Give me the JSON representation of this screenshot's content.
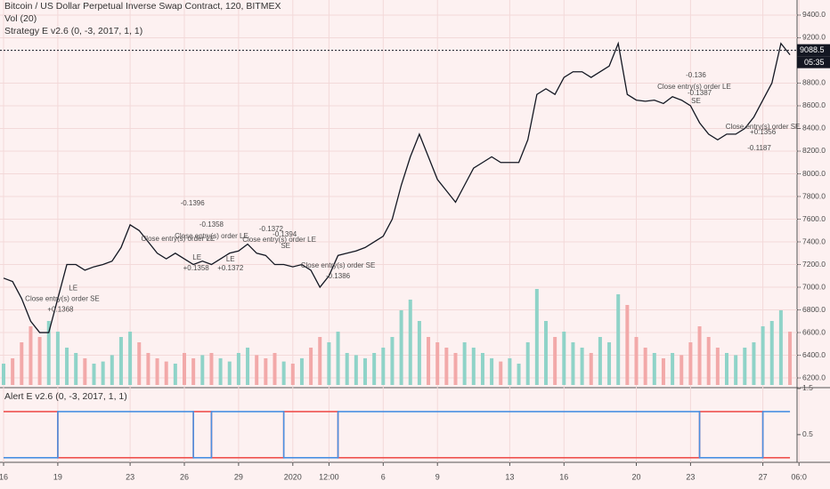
{
  "chart_data": [
    {
      "type": "line",
      "title": "Bitcoin / US Dollar Perpetual Inverse Swap Contract, 120, BITMEX",
      "subtitle": "Strategy E v2.6 (0, -3, 2017, 1, 1)",
      "series": [
        {
          "name": "BTCUSD",
          "color": "#131722",
          "values": [
            7080,
            7050,
            6900,
            6700,
            6600,
            6600,
            6900,
            7200,
            7200,
            7150,
            7180,
            7200,
            7230,
            7350,
            7550,
            7500,
            7400,
            7300,
            7250,
            7300,
            7250,
            7200,
            7230,
            7200,
            7250,
            7300,
            7320,
            7380,
            7300,
            7280,
            7200,
            7200,
            7180,
            7200,
            7150,
            7000,
            7100,
            7280,
            7300,
            7320,
            7350,
            7400,
            7450,
            7600,
            7900,
            8150,
            8350,
            8150,
            7950,
            7850,
            7750,
            7900,
            8050,
            8100,
            8150,
            8100,
            8100,
            8100,
            8300,
            8700,
            8750,
            8700,
            8850,
            8900,
            8900,
            8850,
            8900,
            8950,
            9150,
            8700,
            8650,
            8640,
            8650,
            8620,
            8680,
            8650,
            8600,
            8450,
            8350,
            8300,
            8350,
            8350,
            8400,
            8500,
            8650,
            8800,
            9150,
            9050
          ]
        }
      ],
      "volume": {
        "name": "Vol (20)",
        "up_color": "#8fd3c8",
        "down_color": "#f2a9a9",
        "values": [
          20,
          25,
          40,
          55,
          45,
          60,
          50,
          35,
          30,
          25,
          20,
          22,
          28,
          45,
          50,
          40,
          30,
          25,
          22,
          20,
          30,
          25,
          28,
          30,
          25,
          22,
          30,
          35,
          28,
          25,
          30,
          22,
          20,
          25,
          35,
          45,
          40,
          50,
          30,
          28,
          25,
          30,
          35,
          45,
          70,
          80,
          60,
          45,
          40,
          35,
          30,
          40,
          35,
          30,
          25,
          22,
          25,
          20,
          40,
          90,
          60,
          45,
          50,
          40,
          35,
          30,
          45,
          40,
          85,
          75,
          45,
          35,
          30,
          25,
          30,
          28,
          40,
          55,
          45,
          35,
          30,
          28,
          35,
          40,
          55,
          60,
          70,
          50
        ]
      },
      "vlim": [
        0,
        100
      ],
      "ylim": [
        6122,
        9533
      ],
      "yticks": [
        {
          "value": 6200,
          "label": "6200.0"
        },
        {
          "value": 6400,
          "label": "6400.0"
        },
        {
          "value": 6600,
          "label": "6600.0"
        },
        {
          "value": 6800,
          "label": "6800.0"
        },
        {
          "value": 7000,
          "label": "7000.0"
        },
        {
          "value": 7200,
          "label": "7200.0"
        },
        {
          "value": 7400,
          "label": "7400.0"
        },
        {
          "value": 7600,
          "label": "7600.0"
        },
        {
          "value": 7800,
          "label": "7800.0"
        },
        {
          "value": 8000,
          "label": "8000.0"
        },
        {
          "value": 8200,
          "label": "8200.0"
        },
        {
          "value": 8400,
          "label": "8400.0"
        },
        {
          "value": 8600,
          "label": "8600.0"
        },
        {
          "value": 8800,
          "label": "8800.0"
        },
        {
          "value": 9200,
          "label": "9200.0"
        },
        {
          "value": 9400,
          "label": "9400.0"
        }
      ],
      "xticks": [
        {
          "value": 0,
          "label": "16"
        },
        {
          "value": 6,
          "label": "19"
        },
        {
          "value": 14,
          "label": "23"
        },
        {
          "value": 20,
          "label": "26"
        },
        {
          "value": 26,
          "label": "29"
        },
        {
          "value": 32,
          "label": "2020"
        },
        {
          "value": 36,
          "label": "12:00"
        },
        {
          "value": 42,
          "label": "6"
        },
        {
          "value": 48,
          "label": "9"
        },
        {
          "value": 56,
          "label": "13"
        },
        {
          "value": 62,
          "label": "16"
        },
        {
          "value": 70,
          "label": "20"
        },
        {
          "value": 76,
          "label": "23"
        },
        {
          "value": 84,
          "label": "27"
        },
        {
          "value": 88,
          "label": "06:0"
        }
      ],
      "last_price": 9088.5,
      "countdown": "05:35",
      "grid": true,
      "annotations": [
        {
          "text": "-0.1396",
          "x": 20.9,
          "y": 7737,
          "color": "#ab47bc"
        },
        {
          "text": "Close entry(s) order LE",
          "x": 19.3,
          "y": 7424,
          "color": "#ab47bc"
        },
        {
          "text": "-0.1358",
          "x": 23,
          "y": 7549,
          "color": "#ab47bc"
        },
        {
          "text": "Close entry(s) order LE",
          "x": 23,
          "y": 7447,
          "color": "#ab47bc"
        },
        {
          "text": "-0.1372",
          "x": 29.6,
          "y": 7510,
          "color": "#ab47bc"
        },
        {
          "text": "-0.1394",
          "x": 31.1,
          "y": 7463,
          "color": "#ab47bc"
        },
        {
          "text": "Close entry(s) order LE",
          "x": 30.5,
          "y": 7416,
          "color": "#ab47bc"
        },
        {
          "text": "SE",
          "x": 31.2,
          "y": 7361,
          "color": "#f44336"
        },
        {
          "text": "Close entry(s) order SE",
          "x": 6.5,
          "y": 6894,
          "color": "#ab47bc"
        },
        {
          "text": "+0.1368",
          "x": 6.3,
          "y": 6800,
          "color": "#ab47bc"
        },
        {
          "text": "LE",
          "x": 7.7,
          "y": 6989,
          "color": "#2196f3"
        },
        {
          "text": "LE",
          "x": 21.4,
          "y": 7259,
          "color": "#2196f3"
        },
        {
          "text": "+0.1358",
          "x": 21.3,
          "y": 7165,
          "color": "#2196f3"
        },
        {
          "text": "LE",
          "x": 25.1,
          "y": 7243,
          "color": "#2196f3"
        },
        {
          "text": "+0.1372",
          "x": 25.1,
          "y": 7165,
          "color": "#2196f3"
        },
        {
          "text": "Close entry(s) order SE",
          "x": 37,
          "y": 7188,
          "color": "#ab47bc"
        },
        {
          "text": "-0.1386",
          "x": 37,
          "y": 7094,
          "color": "#ab47bc"
        },
        {
          "text": "-0.136",
          "x": 76.6,
          "y": 8867,
          "color": "#ab47bc"
        },
        {
          "text": "Close entry(s) order LE",
          "x": 76.4,
          "y": 8765,
          "color": "#ab47bc"
        },
        {
          "text": "-0.1387",
          "x": 77,
          "y": 8710,
          "color": "#f44336"
        },
        {
          "text": "SE",
          "x": 76.6,
          "y": 8640,
          "color": "#f44336"
        },
        {
          "text": "Close entry(s) order SE",
          "x": 84,
          "y": 8412,
          "color": "#ab47bc"
        },
        {
          "text": "+0.1356",
          "x": 84,
          "y": 8365,
          "color": "#2196f3"
        },
        {
          "text": "-0.1187",
          "x": 83.6,
          "y": 8224,
          "color": "#ab47bc"
        }
      ]
    },
    {
      "type": "line",
      "title": "Alert E v2.6 (0, -3, 2017, 1, 1)",
      "step": true,
      "series": [
        {
          "name": "Alert 1",
          "color": "#ef5350",
          "values": [
            1,
            1,
            1,
            1,
            1,
            1,
            0,
            0,
            0,
            0,
            0,
            0,
            0,
            0,
            0,
            0,
            0,
            0,
            0,
            0,
            0,
            1,
            1,
            0,
            0,
            0,
            0,
            0,
            0,
            0,
            0,
            1,
            1,
            1,
            1,
            1,
            1,
            0,
            0,
            0,
            0,
            0,
            0,
            0,
            0,
            0,
            0,
            0,
            0,
            0,
            0,
            0,
            0,
            0,
            0,
            0,
            0,
            0,
            0,
            0,
            0,
            0,
            0,
            0,
            0,
            0,
            0,
            0,
            0,
            0,
            0,
            0,
            0,
            0,
            0,
            0,
            0,
            1,
            1,
            1,
            1,
            1,
            1,
            1,
            0,
            0,
            0,
            0
          ]
        },
        {
          "name": "Alert 2",
          "color": "#4a90e2",
          "values": [
            0,
            0,
            0,
            0,
            0,
            0,
            1,
            1,
            1,
            1,
            1,
            1,
            1,
            1,
            1,
            1,
            1,
            1,
            1,
            1,
            1,
            0,
            0,
            1,
            1,
            1,
            1,
            1,
            1,
            1,
            1,
            0,
            0,
            0,
            0,
            0,
            0,
            1,
            1,
            1,
            1,
            1,
            1,
            1,
            1,
            1,
            1,
            1,
            1,
            1,
            1,
            1,
            1,
            1,
            1,
            1,
            1,
            1,
            1,
            1,
            1,
            1,
            1,
            1,
            1,
            1,
            1,
            1,
            1,
            1,
            1,
            1,
            1,
            1,
            1,
            1,
            1,
            0,
            0,
            0,
            0,
            0,
            0,
            0,
            1,
            1,
            1,
            1
          ]
        }
      ],
      "ylim": [
        -0.1,
        1.48
      ],
      "yticks": [
        0.5,
        1.5
      ]
    }
  ]
}
